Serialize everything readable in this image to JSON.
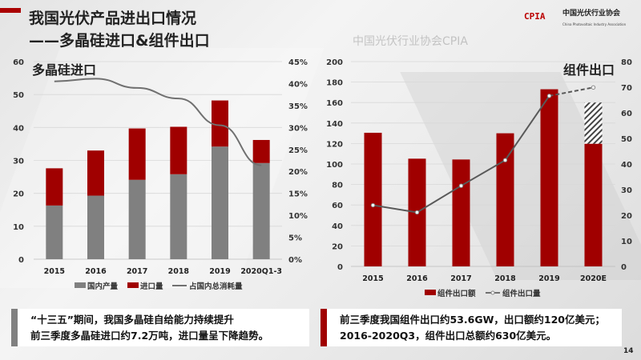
{
  "header": {
    "title_line1": "我国光伏产品进出口情况",
    "title_line2": "——多晶硅进口&组件出口"
  },
  "logo": {
    "mark": "CPIA",
    "name_cn": "中国光伏行业协会",
    "name_en": "China Photovoltaic Industry Association"
  },
  "colors": {
    "red": "#a00000",
    "gray": "#808080",
    "line": "#595959"
  },
  "chart_data": [
    {
      "type": "bar",
      "stacked": true,
      "title": "多晶硅进口",
      "categories": [
        "2015",
        "2016",
        "2017",
        "2018",
        "2019",
        "2020Q1-3"
      ],
      "series": [
        {
          "name": "国内产量",
          "axis": "left",
          "values": [
            16.3,
            19.3,
            24.1,
            25.8,
            34.2,
            29.2
          ]
        },
        {
          "name": "进口量",
          "axis": "left",
          "values": [
            11.3,
            13.7,
            15.6,
            14.4,
            14.0,
            7.0
          ]
        },
        {
          "name": "占国内总消耗量",
          "type": "line",
          "axis": "right",
          "values": [
            40.5,
            41.1,
            39.0,
            36.6,
            30.5,
            21.4
          ]
        }
      ],
      "ylim": [
        0,
        60
      ],
      "yticks": [
        "0",
        "10",
        "20",
        "30",
        "40",
        "50",
        "60"
      ],
      "y2lim": [
        0,
        45
      ],
      "y2ticks": [
        "0%",
        "5%",
        "10%",
        "15%",
        "20%",
        "25%",
        "30%",
        "35%",
        "40%",
        "45%"
      ],
      "grid": true,
      "legend": "bottom"
    },
    {
      "type": "bar",
      "title": "组件出口",
      "categories": [
        "2015",
        "2016",
        "2017",
        "2018",
        "2019",
        "2020E"
      ],
      "series": [
        {
          "name": "组件出口额",
          "axis": "left",
          "values": [
            130.5,
            105.2,
            104.4,
            130,
            173,
            119.8
          ],
          "estimate_top": [
            null,
            null,
            null,
            null,
            null,
            160
          ]
        },
        {
          "name": "组件出口量",
          "type": "line",
          "axis": "right",
          "values": [
            23.9,
            21.1,
            31.5,
            41.5,
            66.6,
            69.9
          ]
        }
      ],
      "ylim": [
        0,
        200
      ],
      "yticks": [
        "0",
        "20",
        "40",
        "60",
        "80",
        "100",
        "120",
        "140",
        "160",
        "180",
        "200"
      ],
      "y2lim": [
        0,
        80
      ],
      "y2ticks": [
        "0",
        "10",
        "20",
        "30",
        "40",
        "50",
        "60",
        "70",
        "80"
      ],
      "grid": true,
      "legend": "bottom"
    }
  ],
  "notes": {
    "left_line1": "“十三五”期间，我国多晶硅自给能力持续提升",
    "left_line2": "前三季度多晶硅进口约7.2万吨，进口量呈下降趋势。",
    "right_line1": "前三季度我国组件出口约53.6GW，出口额约120亿美元；",
    "right_line2": "2016-2020Q3，组件出口总额约630亿美元。"
  },
  "watermark": "中国光伏行业协会CPIA",
  "page_number": "14"
}
